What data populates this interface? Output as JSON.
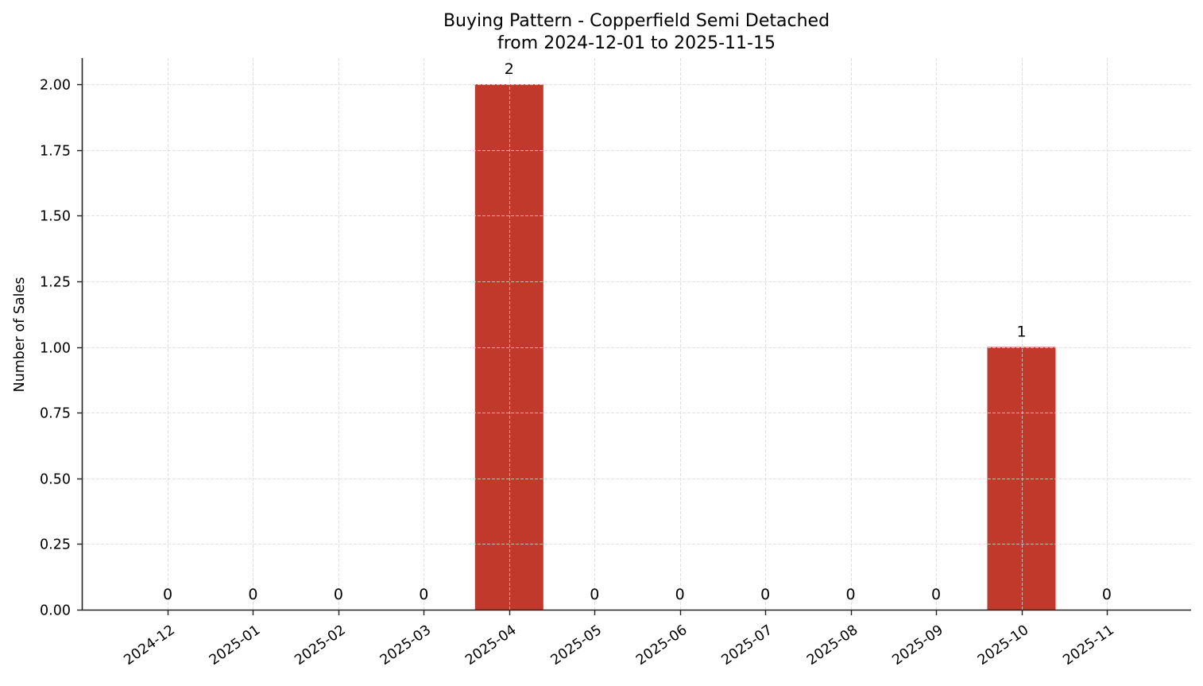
{
  "chart_data": {
    "type": "bar",
    "title": "Buying Pattern - Copperfield Semi Detached",
    "subtitle": "from 2024-12-01 to 2025-11-15",
    "xlabel": "",
    "ylabel": "Number of Sales",
    "categories": [
      "2024-12",
      "2025-01",
      "2025-02",
      "2025-03",
      "2025-04",
      "2025-05",
      "2025-06",
      "2025-07",
      "2025-08",
      "2025-09",
      "2025-10",
      "2025-11"
    ],
    "values": [
      0,
      0,
      0,
      0,
      2,
      0,
      0,
      0,
      0,
      0,
      1,
      0
    ],
    "bar_labels": [
      "0",
      "0",
      "0",
      "0",
      "2",
      "0",
      "0",
      "0",
      "0",
      "0",
      "1",
      "0"
    ],
    "ylim": [
      0,
      2.1
    ],
    "yticks": [
      "0.00",
      "0.25",
      "0.50",
      "0.75",
      "1.00",
      "1.25",
      "1.50",
      "1.75",
      "2.00"
    ],
    "grid": true,
    "legend": null,
    "colors": {
      "bar": "#c0392b",
      "grid": "#d9d9d9",
      "axis": "#222222"
    }
  }
}
